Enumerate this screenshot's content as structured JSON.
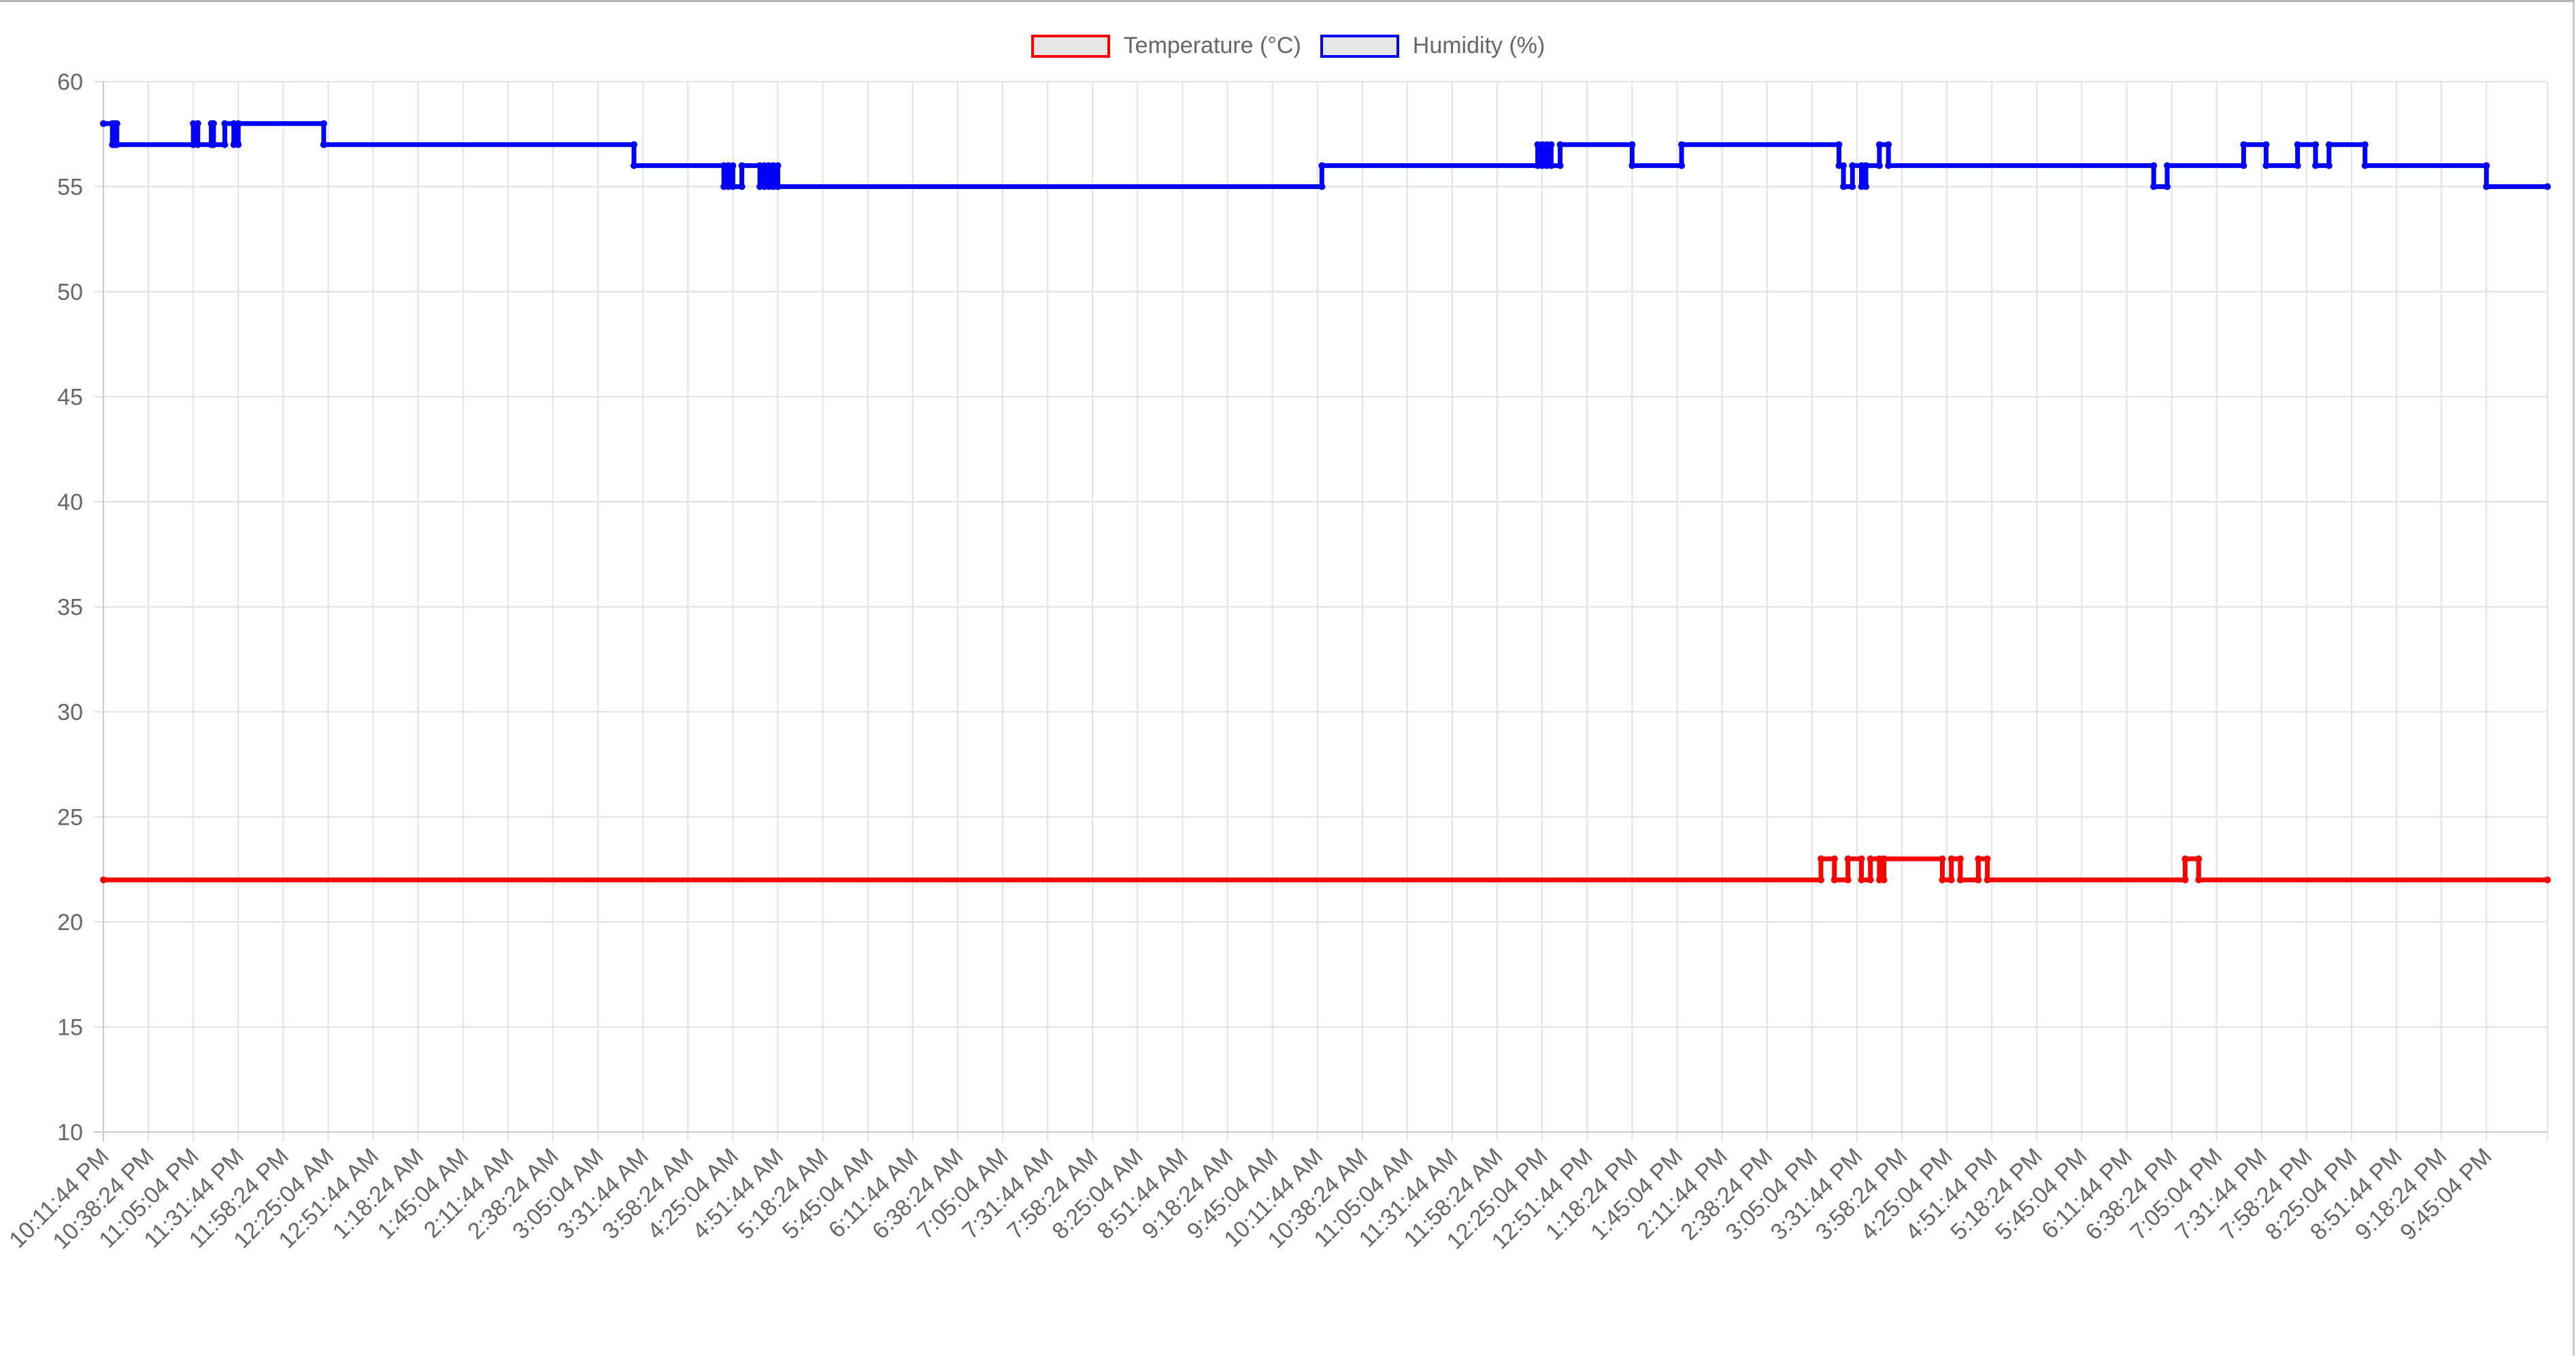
{
  "chart_data": {
    "type": "line",
    "ylim": [
      10,
      60
    ],
    "yticks": [
      10,
      15,
      20,
      25,
      30,
      35,
      40,
      45,
      50,
      55,
      60
    ],
    "grid": true,
    "legend_placement": "top-center",
    "x_tick_labels": [
      "10:11:44 PM",
      "10:38:24 PM",
      "11:05:04 PM",
      "11:31:44 PM",
      "11:58:24 PM",
      "12:25:04 AM",
      "12:51:44 AM",
      "1:18:24 AM",
      "1:45:04 AM",
      "2:11:44 AM",
      "2:38:24 AM",
      "3:05:04 AM",
      "3:31:44 AM",
      "3:58:24 AM",
      "4:25:04 AM",
      "4:51:44 AM",
      "5:18:24 AM",
      "5:45:04 AM",
      "6:11:44 AM",
      "6:38:24 AM",
      "7:05:04 AM",
      "7:31:44 AM",
      "7:58:24 AM",
      "8:25:04 AM",
      "8:51:44 AM",
      "9:18:24 AM",
      "9:45:04 AM",
      "10:11:44 AM",
      "10:38:24 AM",
      "11:05:04 AM",
      "11:31:44 AM",
      "11:58:24 AM",
      "12:25:04 PM",
      "12:51:44 PM",
      "1:18:24 PM",
      "1:45:04 PM",
      "2:11:44 PM",
      "2:38:24 PM",
      "3:05:04 PM",
      "3:31:44 PM",
      "3:58:24 PM",
      "4:25:04 PM",
      "4:51:44 PM",
      "5:18:24 PM",
      "5:45:04 PM",
      "6:11:44 PM",
      "6:38:24 PM",
      "7:05:04 PM",
      "7:31:44 PM",
      "7:58:24 PM",
      "8:25:04 PM",
      "8:51:44 PM",
      "9:18:24 PM",
      "9:45:04 PM"
    ],
    "x_end_label_index": 54.9,
    "series": [
      {
        "name": "Temperature (°C)",
        "color": "#ff0000",
        "points": [
          [
            0,
            22
          ],
          [
            38.2,
            22
          ],
          [
            38.2,
            23
          ],
          [
            38.5,
            23
          ],
          [
            38.5,
            22
          ],
          [
            38.8,
            22
          ],
          [
            38.8,
            23
          ],
          [
            39.1,
            23
          ],
          [
            39.1,
            22
          ],
          [
            39.3,
            22
          ],
          [
            39.3,
            23
          ],
          [
            39.5,
            23
          ],
          [
            39.5,
            22
          ],
          [
            39.6,
            22
          ],
          [
            39.6,
            23
          ],
          [
            40.9,
            23
          ],
          [
            40.9,
            22
          ],
          [
            41.1,
            22
          ],
          [
            41.1,
            23
          ],
          [
            41.3,
            23
          ],
          [
            41.3,
            22
          ],
          [
            41.7,
            22
          ],
          [
            41.7,
            23
          ],
          [
            41.9,
            23
          ],
          [
            41.9,
            22
          ],
          [
            46.3,
            22
          ],
          [
            46.3,
            23
          ],
          [
            46.6,
            23
          ],
          [
            46.6,
            22
          ],
          [
            54.9,
            22
          ]
        ]
      },
      {
        "name": "Humidity (%)",
        "color": "#0000ff",
        "points": [
          [
            0,
            58
          ],
          [
            0.2,
            58
          ],
          [
            0.2,
            57
          ],
          [
            0.3,
            57
          ],
          [
            0.3,
            58
          ],
          [
            0.25,
            58
          ],
          [
            0.25,
            57
          ],
          [
            2.0,
            57
          ],
          [
            2.0,
            58
          ],
          [
            2.1,
            58
          ],
          [
            2.1,
            57
          ],
          [
            2.4,
            57
          ],
          [
            2.4,
            58
          ],
          [
            2.45,
            58
          ],
          [
            2.45,
            57
          ],
          [
            2.7,
            57
          ],
          [
            2.7,
            58
          ],
          [
            2.9,
            58
          ],
          [
            2.9,
            57
          ],
          [
            3.0,
            57
          ],
          [
            3.0,
            58
          ],
          [
            4.9,
            58
          ],
          [
            4.9,
            57
          ],
          [
            11.8,
            57
          ],
          [
            11.8,
            56
          ],
          [
            13.8,
            56
          ],
          [
            13.8,
            55
          ],
          [
            13.9,
            55
          ],
          [
            13.9,
            56
          ],
          [
            14.0,
            56
          ],
          [
            14.0,
            55
          ],
          [
            14.2,
            55
          ],
          [
            14.2,
            56
          ],
          [
            14.6,
            56
          ],
          [
            14.6,
            55
          ],
          [
            14.7,
            55
          ],
          [
            14.7,
            56
          ],
          [
            14.8,
            56
          ],
          [
            14.8,
            55
          ],
          [
            14.9,
            55
          ],
          [
            14.9,
            56
          ],
          [
            15.0,
            56
          ],
          [
            15.0,
            55
          ],
          [
            27.1,
            55
          ],
          [
            27.1,
            56
          ],
          [
            31.9,
            56
          ],
          [
            31.9,
            57
          ],
          [
            32.0,
            57
          ],
          [
            32.0,
            56
          ],
          [
            32.1,
            56
          ],
          [
            32.1,
            57
          ],
          [
            32.2,
            57
          ],
          [
            32.2,
            56
          ],
          [
            32.4,
            56
          ],
          [
            32.4,
            57
          ],
          [
            34.0,
            57
          ],
          [
            34.0,
            56
          ],
          [
            35.1,
            56
          ],
          [
            35.1,
            57
          ],
          [
            38.6,
            57
          ],
          [
            38.6,
            56
          ],
          [
            38.7,
            56
          ],
          [
            38.7,
            55
          ],
          [
            38.9,
            55
          ],
          [
            38.9,
            56
          ],
          [
            39.1,
            56
          ],
          [
            39.1,
            55
          ],
          [
            39.2,
            55
          ],
          [
            39.2,
            56
          ],
          [
            39.5,
            56
          ],
          [
            39.5,
            57
          ],
          [
            39.7,
            57
          ],
          [
            39.7,
            56
          ],
          [
            45.6,
            56
          ],
          [
            45.6,
            55
          ],
          [
            45.9,
            55
          ],
          [
            45.9,
            56
          ],
          [
            47.6,
            56
          ],
          [
            47.6,
            57
          ],
          [
            48.1,
            57
          ],
          [
            48.1,
            56
          ],
          [
            48.8,
            56
          ],
          [
            48.8,
            57
          ],
          [
            49.2,
            57
          ],
          [
            49.2,
            56
          ],
          [
            49.5,
            56
          ],
          [
            49.5,
            57
          ],
          [
            50.3,
            57
          ],
          [
            50.3,
            56
          ],
          [
            53.0,
            56
          ],
          [
            53.0,
            55
          ],
          [
            54.9,
            55
          ]
        ]
      }
    ]
  }
}
